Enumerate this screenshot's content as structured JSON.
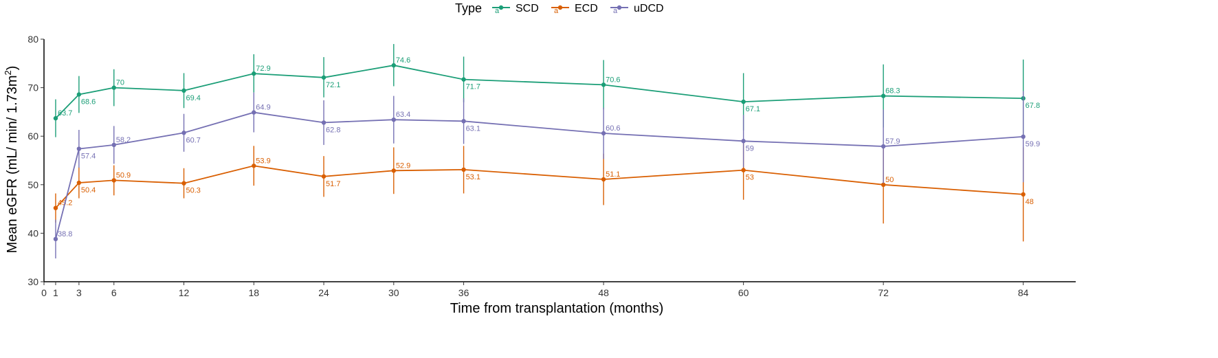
{
  "chart_data": {
    "type": "line",
    "title": "",
    "xlabel": "Time from transplantation (months)",
    "ylabel_main": "Mean eGFR (mL/ min/ 1.73m",
    "ylabel_sup": "2",
    "ylabel_end": ")",
    "xlim": [
      0,
      88.5
    ],
    "ylim": [
      30,
      80
    ],
    "x_ticks": [
      0,
      1,
      3,
      6,
      12,
      18,
      24,
      30,
      36,
      48,
      60,
      72,
      84
    ],
    "y_ticks": [
      30,
      40,
      50,
      60,
      70,
      80
    ],
    "legend": {
      "title": "Type",
      "position": "top"
    },
    "x": [
      1,
      3,
      6,
      12,
      18,
      24,
      30,
      36,
      48,
      60,
      72,
      84
    ],
    "series": [
      {
        "name": "SCD",
        "color": "#1b9e77",
        "values": [
          63.7,
          68.6,
          70,
          69.4,
          72.9,
          72.1,
          74.6,
          71.7,
          70.6,
          67.1,
          68.3,
          67.8
        ],
        "err_low": [
          59.8,
          64.8,
          66.2,
          65.8,
          69.0,
          68.0,
          70.3,
          67.0,
          65.5,
          61.2,
          61.8,
          59.8
        ],
        "err_high": [
          67.6,
          72.4,
          73.8,
          73.0,
          76.9,
          76.3,
          79.0,
          76.4,
          75.7,
          73.0,
          74.8,
          75.8
        ]
      },
      {
        "name": "ECD",
        "color": "#d95f02",
        "values": [
          45.2,
          50.4,
          50.9,
          50.3,
          53.9,
          51.7,
          52.9,
          53.1,
          51.1,
          53,
          50,
          48
        ],
        "err_low": [
          42.2,
          47.2,
          47.8,
          47.2,
          49.8,
          47.5,
          48.1,
          48.2,
          45.8,
          46.9,
          42.0,
          38.3
        ],
        "err_high": [
          48.2,
          53.6,
          54.0,
          53.4,
          58.0,
          55.9,
          57.7,
          58.0,
          56.4,
          59.1,
          58.0,
          57.7
        ]
      },
      {
        "name": "uDCD",
        "color": "#7570b3",
        "values": [
          38.8,
          57.4,
          58.2,
          60.7,
          64.9,
          62.8,
          63.4,
          63.1,
          60.6,
          59,
          57.9,
          59.9
        ],
        "err_low": [
          34.8,
          53.5,
          54.3,
          56.8,
          60.8,
          58.2,
          58.5,
          58.4,
          55.3,
          53.6,
          50.3,
          50.5
        ],
        "err_high": [
          42.8,
          61.3,
          62.1,
          64.6,
          69.0,
          67.4,
          68.3,
          67.8,
          65.9,
          64.4,
          65.5,
          69.3
        ]
      }
    ]
  }
}
